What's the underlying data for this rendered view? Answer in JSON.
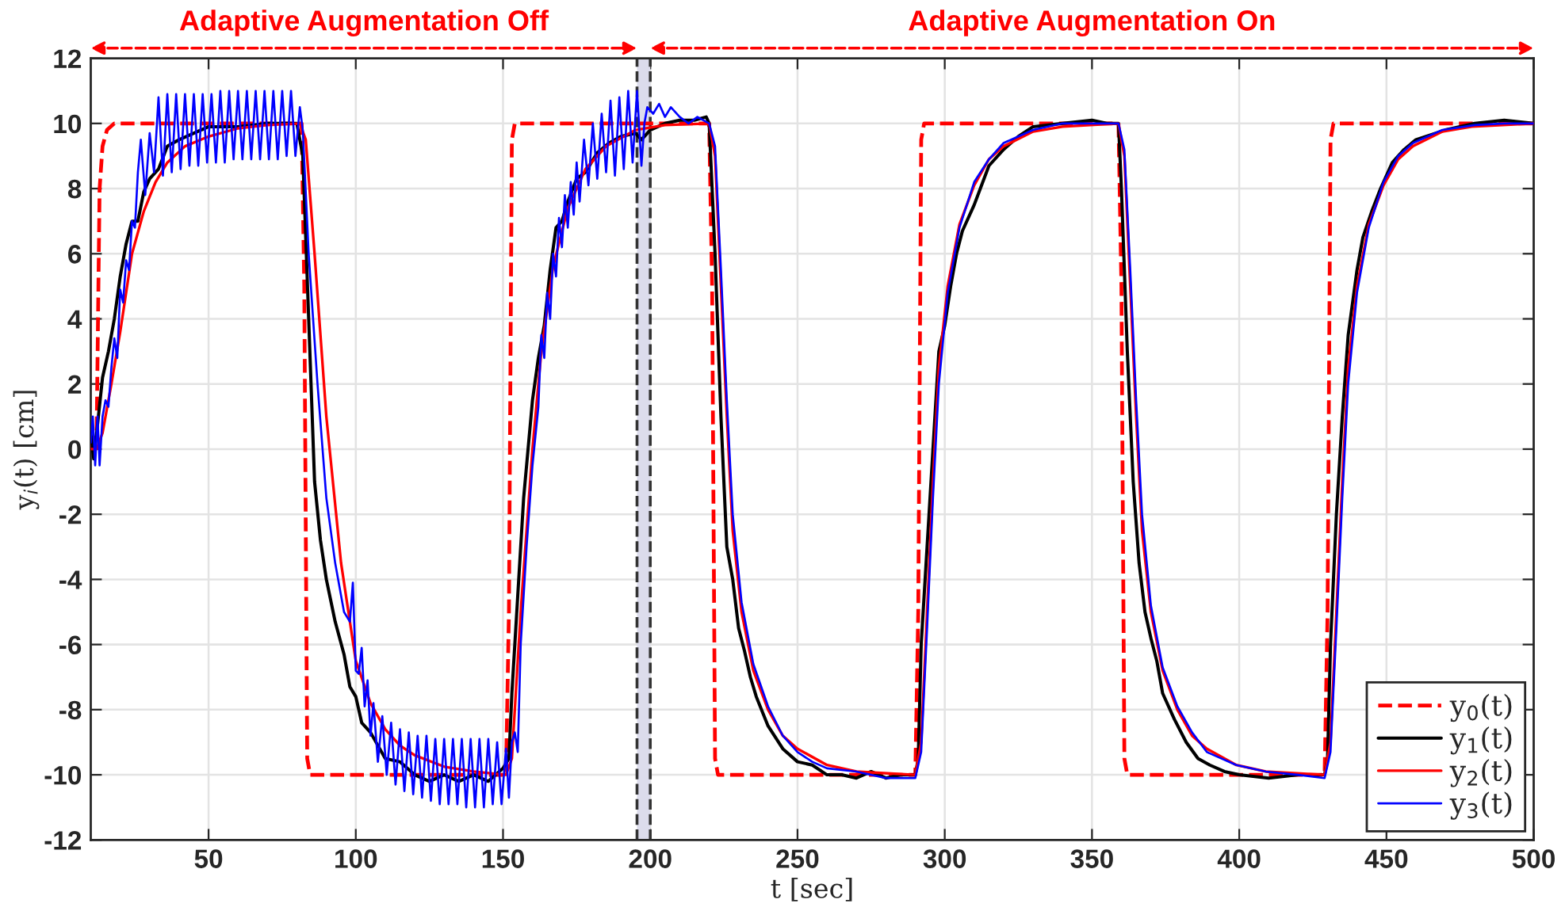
{
  "chart_data": {
    "type": "line",
    "xlabel": "t [sec]",
    "ylabel": "y$_{i}$(t) [cm]",
    "xlim": [
      10,
      500
    ],
    "xticks": [
      50,
      100,
      150,
      200,
      250,
      300,
      350,
      400,
      450,
      500
    ],
    "ylim": [
      -12,
      12
    ],
    "yticks": [
      -12,
      -10,
      -8,
      -6,
      -4,
      -2,
      0,
      2,
      4,
      6,
      8,
      10,
      12
    ],
    "grid": true,
    "legend": "bottom right",
    "annotations": [
      "Adaptive Augmentation Off",
      "Adaptive Augmentation On"
    ],
    "bands": [
      {
        "axis": "x",
        "from": 195.5,
        "to": 200,
        "color": "#dcdcec"
      }
    ],
    "ref_lines": [
      {
        "axis": "x",
        "value": 195.5,
        "color": "#333333",
        "line_style": "dashed"
      },
      {
        "axis": "x",
        "value": 200,
        "color": "#333333",
        "line_style": "dashed"
      }
    ],
    "series": [
      {
        "name": "y$_{0}$(t)",
        "color": "#ff0000",
        "line_style": "dashed",
        "x": [
          10,
          12,
          12.6,
          13,
          14,
          15.5,
          18,
          81.6,
          82.5,
          83.5,
          84.5,
          151,
          152,
          153,
          154,
          220,
          221,
          222,
          223,
          290,
          291,
          292,
          293,
          359,
          360,
          361,
          362,
          429,
          430,
          431,
          432,
          500
        ],
        "values": [
          0,
          0.5,
          5,
          8,
          9.3,
          9.8,
          10,
          10,
          5,
          -9.5,
          -10,
          -10,
          -5,
          9.5,
          10,
          10,
          5,
          -9.5,
          -10,
          -10,
          -5,
          9.5,
          10,
          10,
          5,
          -9.5,
          -10,
          -10,
          -5,
          9.5,
          10,
          10
        ]
      },
      {
        "name": "y$_{1}$(t)",
        "color": "#000000",
        "line_style": "solid",
        "x": [
          10,
          11,
          12,
          14,
          16,
          18,
          20,
          22,
          24,
          26,
          28,
          30,
          33,
          36,
          40,
          45,
          50,
          60,
          70,
          80,
          82,
          84,
          86,
          88,
          90,
          93,
          96,
          98,
          100,
          102,
          105,
          110,
          115,
          120,
          125,
          130,
          135,
          140,
          145,
          150,
          152,
          153,
          155,
          157,
          160,
          162,
          164,
          166,
          168,
          170,
          172,
          175,
          178,
          182,
          186,
          190,
          195,
          197,
          200,
          205,
          210,
          215,
          219,
          220,
          222,
          224,
          226,
          228,
          230,
          232,
          234,
          236,
          240,
          245,
          250,
          255,
          260,
          265,
          270,
          275,
          280,
          285,
          290,
          291,
          292,
          294,
          296,
          298,
          300,
          302,
          304,
          306,
          310,
          315,
          320,
          325,
          330,
          340,
          350,
          355,
          359,
          360,
          362,
          364,
          366,
          368,
          370,
          372,
          374,
          378,
          382,
          386,
          390,
          395,
          400,
          410,
          420,
          429,
          430,
          431,
          433,
          435,
          437,
          440,
          442,
          445,
          448,
          452,
          456,
          460,
          470,
          480,
          490,
          500
        ],
        "values": [
          0.5,
          -0.3,
          0.5,
          2.2,
          3,
          4,
          5.3,
          6.3,
          7,
          7,
          7.9,
          8.3,
          8.6,
          9.3,
          9.5,
          9.7,
          9.9,
          9.9,
          10,
          10,
          9,
          4,
          -1,
          -2.8,
          -4,
          -5.3,
          -6.3,
          -7.3,
          -7.6,
          -8.4,
          -8.7,
          -9.5,
          -9.6,
          -10,
          -10.2,
          -10,
          -10.2,
          -10,
          -10.2,
          -9.8,
          -9.5,
          -7.5,
          -4.5,
          -1.5,
          1.5,
          2.8,
          3.8,
          5.5,
          6.8,
          7,
          7.6,
          8.3,
          8.5,
          9.1,
          9.4,
          9.6,
          9.7,
          9.5,
          9.8,
          10,
          10.1,
          10.1,
          10.2,
          10,
          6,
          1,
          -3,
          -4,
          -5.5,
          -6.2,
          -7,
          -7.6,
          -8.5,
          -9.2,
          -9.6,
          -9.7,
          -10,
          -10,
          -10.1,
          -9.9,
          -10.1,
          -10,
          -10,
          -9.5,
          -6,
          -3,
          0,
          3,
          3.8,
          5,
          6,
          6.7,
          7.5,
          8.7,
          9.2,
          9.6,
          9.9,
          10,
          10.1,
          10,
          10,
          8,
          3,
          -1,
          -3.5,
          -5,
          -5.8,
          -6.5,
          -7.5,
          -8.3,
          -9,
          -9.5,
          -9.7,
          -9.9,
          -10,
          -10.1,
          -10,
          -10,
          -9.5,
          -6,
          -2,
          1,
          3.5,
          5.5,
          6.5,
          7.3,
          8,
          8.8,
          9.2,
          9.5,
          9.8,
          10,
          10.1,
          10
        ]
      },
      {
        "name": "y$_{2}$(t)",
        "color": "#ff0000",
        "line_style": "solid",
        "x": [
          10,
          12,
          14,
          17,
          20,
          24,
          28,
          32,
          36,
          42,
          50,
          60,
          70,
          81,
          83,
          86,
          90,
          95,
          100,
          105,
          110,
          115,
          120,
          130,
          140,
          151,
          153,
          156,
          160,
          163,
          167,
          172,
          178,
          185,
          195,
          205,
          220,
          222,
          224,
          226,
          228,
          231,
          235,
          240,
          245,
          250,
          260,
          270,
          290,
          292,
          294,
          296,
          298,
          301,
          305,
          310,
          315,
          320,
          330,
          340,
          359,
          361,
          363,
          365,
          367,
          370,
          374,
          379,
          384,
          389,
          399,
          409,
          429,
          431,
          433,
          435,
          437,
          440,
          444,
          449,
          454,
          459,
          469,
          479,
          500
        ],
        "values": [
          0,
          0,
          0.5,
          2,
          3.6,
          6,
          7.3,
          8.2,
          8.8,
          9.3,
          9.6,
          9.85,
          9.95,
          10,
          9.5,
          6,
          1,
          -3.5,
          -6.5,
          -7.8,
          -8.6,
          -9.1,
          -9.4,
          -9.75,
          -9.9,
          -10,
          -9.5,
          -5,
          0,
          3,
          5.6,
          7.4,
          8.6,
          9.3,
          9.8,
          9.95,
          10,
          9,
          5,
          1,
          -2.5,
          -5,
          -6.8,
          -8,
          -8.8,
          -9.2,
          -9.7,
          -9.9,
          -10,
          -9,
          -5,
          -1,
          2.5,
          5,
          6.9,
          8.1,
          8.9,
          9.3,
          9.75,
          9.9,
          10,
          9,
          5,
          1,
          -2.5,
          -5,
          -6.8,
          -8,
          -8.8,
          -9.2,
          -9.7,
          -9.9,
          -10,
          -9,
          -5,
          -1,
          2.5,
          5,
          6.9,
          8.1,
          8.9,
          9.3,
          9.75,
          9.9,
          10
        ]
      },
      {
        "name": "y$_{3}$(t)",
        "color": "#0000ff",
        "line_style": "solid",
        "x": [
          10,
          10.7,
          11.5,
          12.3,
          13,
          14,
          15,
          16,
          17,
          18,
          19,
          20,
          21,
          22,
          23,
          24,
          25,
          26,
          27,
          28.5,
          30,
          31.5,
          33,
          34.5,
          36,
          37.5,
          39,
          40.5,
          42,
          43.5,
          45,
          46.5,
          48,
          49.5,
          51,
          52.5,
          54,
          55.5,
          57,
          58.5,
          60,
          61.5,
          63,
          64.5,
          66,
          67.5,
          69,
          70.5,
          72,
          73.5,
          75,
          76.5,
          78,
          79.5,
          81,
          82,
          84,
          87,
          90,
          93,
          96,
          98,
          99,
          100,
          101,
          102,
          103,
          104,
          105,
          106,
          107.5,
          109,
          110.5,
          112,
          113.5,
          115,
          116.5,
          118,
          119.5,
          121,
          122.5,
          124,
          125.5,
          127,
          128.5,
          130,
          131.5,
          133,
          134.5,
          136,
          137.5,
          139,
          140.5,
          142,
          143.5,
          145,
          146.5,
          148,
          149.5,
          151,
          152,
          153,
          154,
          155,
          156,
          158,
          160,
          162,
          163,
          164,
          165,
          166,
          167,
          168,
          169,
          170,
          171,
          172,
          173,
          174,
          175,
          176,
          177.5,
          179,
          180.5,
          182,
          183.5,
          185,
          186.5,
          188,
          189.5,
          191,
          192.5,
          194,
          195.5,
          197,
          198,
          199,
          201,
          203,
          205,
          207,
          210,
          213,
          216,
          220,
          222,
          224,
          226,
          228,
          231,
          235,
          240,
          245,
          250,
          255,
          260,
          270,
          280,
          290,
          292,
          294,
          296,
          298,
          301,
          305,
          310,
          315,
          320,
          330,
          340,
          350,
          359,
          361,
          363,
          365,
          367,
          370,
          374,
          379,
          384,
          389,
          399,
          409,
          420,
          429,
          431,
          433,
          435,
          437,
          440,
          444,
          449,
          454,
          459,
          469,
          480,
          490,
          500
        ],
        "values": [
          0.2,
          1,
          -0.5,
          1,
          -0.5,
          1,
          1.5,
          1.3,
          2.5,
          3.4,
          2.8,
          4.9,
          4.5,
          5.8,
          5.5,
          7,
          6.8,
          8.5,
          9.5,
          7.8,
          9.7,
          8.5,
          10.8,
          8.4,
          10.9,
          8.5,
          10.9,
          8.6,
          10.9,
          8.7,
          10.9,
          8.7,
          10.9,
          8.8,
          10.9,
          8.8,
          11,
          8.8,
          11,
          8.9,
          11,
          8.9,
          11,
          8.9,
          11,
          8.9,
          11,
          8.9,
          11,
          8.9,
          11,
          9,
          11,
          9,
          10.5,
          9.8,
          6,
          2,
          -1.5,
          -3.5,
          -5,
          -5.3,
          -4.1,
          -6.8,
          -6.9,
          -6.1,
          -7.9,
          -7.1,
          -8.8,
          -7.8,
          -9.6,
          -8.2,
          -10,
          -8.4,
          -10.3,
          -8.6,
          -10.5,
          -8.7,
          -10.6,
          -8.8,
          -10.7,
          -8.8,
          -10.8,
          -8.9,
          -10.9,
          -8.9,
          -10.9,
          -8.9,
          -10.9,
          -8.9,
          -11,
          -8.9,
          -11,
          -8.9,
          -11,
          -8.9,
          -10.9,
          -9,
          -10.9,
          -9.2,
          -10.7,
          -9,
          -8.7,
          -9.3,
          -6,
          -3,
          -0.5,
          1.3,
          3.5,
          2.8,
          4.8,
          4,
          6,
          5.3,
          7.1,
          6.2,
          7.8,
          6.8,
          8.2,
          7.2,
          8.8,
          7.6,
          9.5,
          8.1,
          10,
          8.3,
          10.3,
          8.5,
          10.7,
          8.4,
          10.8,
          8.6,
          11,
          8.8,
          11,
          8.7,
          10,
          10.5,
          10.3,
          10.6,
          10.2,
          10.5,
          10.2,
          10,
          10.2,
          10,
          9.3,
          5.5,
          1.5,
          -2,
          -4.7,
          -6.6,
          -7.9,
          -8.8,
          -9.3,
          -9.6,
          -9.8,
          -9.9,
          -10.1,
          -10.1,
          -9.3,
          -5.5,
          -1.5,
          2,
          4.8,
          6.8,
          8.2,
          8.9,
          9.4,
          9.8,
          10,
          10,
          10,
          9.2,
          5.5,
          1.5,
          -2,
          -4.8,
          -6.7,
          -7.9,
          -8.7,
          -9.3,
          -9.7,
          -9.9,
          -10,
          -10.1,
          -9.3,
          -5.5,
          -1.5,
          2,
          4.8,
          6.8,
          8.2,
          9,
          9.4,
          9.8,
          9.95,
          10,
          10
        ]
      }
    ]
  }
}
